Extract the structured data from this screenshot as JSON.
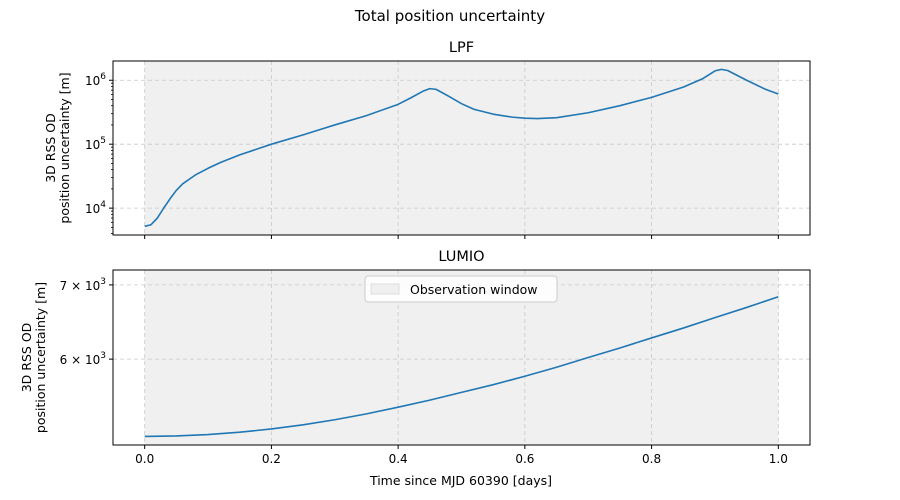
{
  "figure": {
    "suptitle": "Total position uncertainty",
    "xlabel": "Time since MJD 60390 [days]"
  },
  "chart_data": [
    {
      "type": "line",
      "title": "LPF",
      "ylabel_line1": "3D RSS OD",
      "ylabel_line2": "position uncertainty [m]",
      "yscale": "log",
      "xlim": [
        -0.05,
        1.05
      ],
      "ylim": [
        3800,
        2000000
      ],
      "x_ticks": [
        "0.0",
        "0.2",
        "0.4",
        "0.6",
        "0.8",
        "1.0"
      ],
      "y_ticks": [
        {
          "value": 10000,
          "base": "10",
          "exp": "4"
        },
        {
          "value": 100000,
          "base": "10",
          "exp": "5"
        },
        {
          "value": 1000000,
          "base": "10",
          "exp": "6"
        }
      ],
      "grid": true,
      "observation_window": [
        0.0,
        1.0
      ],
      "line_color": "#1f77b4",
      "window_color": "#f0f0f0",
      "series": [
        {
          "x": [
            0.0,
            0.01,
            0.02,
            0.03,
            0.04,
            0.05,
            0.06,
            0.08,
            0.1,
            0.12,
            0.15,
            0.2,
            0.25,
            0.3,
            0.35,
            0.4,
            0.42,
            0.44,
            0.45,
            0.46,
            0.48,
            0.5,
            0.52,
            0.55,
            0.58,
            0.6,
            0.62,
            0.65,
            0.7,
            0.75,
            0.8,
            0.85,
            0.88,
            0.9,
            0.91,
            0.92,
            0.95,
            0.98,
            1.0
          ],
          "y": [
            5200,
            5500,
            7000,
            10000,
            14000,
            19000,
            24000,
            33000,
            42000,
            52000,
            68000,
            100000,
            140000,
            200000,
            280000,
            420000,
            530000,
            680000,
            740000,
            720000,
            560000,
            430000,
            350000,
            295000,
            265000,
            255000,
            252000,
            260000,
            310000,
            400000,
            540000,
            780000,
            1050000,
            1400000,
            1480000,
            1420000,
            1000000,
            720000,
            610000
          ]
        }
      ]
    },
    {
      "type": "line",
      "title": "LUMIO",
      "ylabel_line1": "3D RSS OD",
      "ylabel_line2": "position uncertainty [m]",
      "yscale": "log",
      "xlim": [
        -0.05,
        1.05
      ],
      "ylim": [
        5020,
        7220
      ],
      "x_ticks": [
        "0.0",
        "0.2",
        "0.4",
        "0.6",
        "0.8",
        "1.0"
      ],
      "y_ticks": [
        {
          "value": 6000,
          "base": "6 × 10",
          "exp": "3"
        },
        {
          "value": 7000,
          "base": "7 × 10",
          "exp": "3"
        }
      ],
      "grid": true,
      "observation_window": [
        0.0,
        1.0
      ],
      "line_color": "#1f77b4",
      "window_color": "#f0f0f0",
      "legend": {
        "label": "Observation window",
        "position": "upper center"
      },
      "series": [
        {
          "x": [
            0.0,
            0.05,
            0.1,
            0.15,
            0.2,
            0.25,
            0.3,
            0.35,
            0.4,
            0.45,
            0.5,
            0.55,
            0.6,
            0.65,
            0.7,
            0.75,
            0.8,
            0.85,
            0.9,
            0.95,
            1.0
          ],
          "y": [
            5110,
            5115,
            5130,
            5155,
            5190,
            5235,
            5290,
            5355,
            5430,
            5510,
            5600,
            5690,
            5790,
            5900,
            6020,
            6140,
            6270,
            6400,
            6540,
            6680,
            6830
          ]
        }
      ]
    }
  ]
}
